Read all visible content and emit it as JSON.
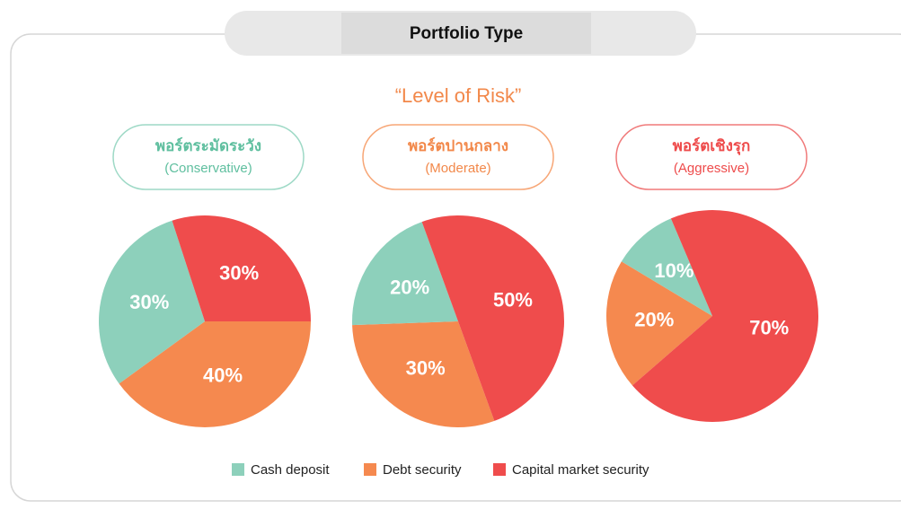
{
  "header": {
    "title": "Portfolio Type",
    "subtitle": "“Level of Risk”"
  },
  "chart_data": [
    {
      "type": "pie",
      "title": "พอร์ตระมัดระวัง",
      "subtitle": "(Conservative)",
      "categories": [
        "Cash deposit",
        "Debt security",
        "Capital market security"
      ],
      "values": [
        30,
        40,
        30
      ],
      "value_labels": [
        "30%",
        "40%",
        "30%"
      ],
      "colors": [
        "#8dd0bb",
        "#f5894f",
        "#ef4c4c"
      ]
    },
    {
      "type": "pie",
      "title": "พอร์ตปานกลาง",
      "subtitle": "(Moderate)",
      "categories": [
        "Cash deposit",
        "Debt security",
        "Capital market security"
      ],
      "values": [
        20,
        30,
        50
      ],
      "value_labels": [
        "20%",
        "30%",
        "50%"
      ],
      "colors": [
        "#8dd0bb",
        "#f5894f",
        "#ef4c4c"
      ]
    },
    {
      "type": "pie",
      "title": "พอร์ตเชิงรุก",
      "subtitle": "(Aggressive)",
      "categories": [
        "Cash deposit",
        "Debt security",
        "Capital market security"
      ],
      "values": [
        10,
        20,
        70
      ],
      "value_labels": [
        "10%",
        "20%",
        "70%"
      ],
      "colors": [
        "#8dd0bb",
        "#f5894f",
        "#ef4c4c"
      ]
    }
  ]
}
